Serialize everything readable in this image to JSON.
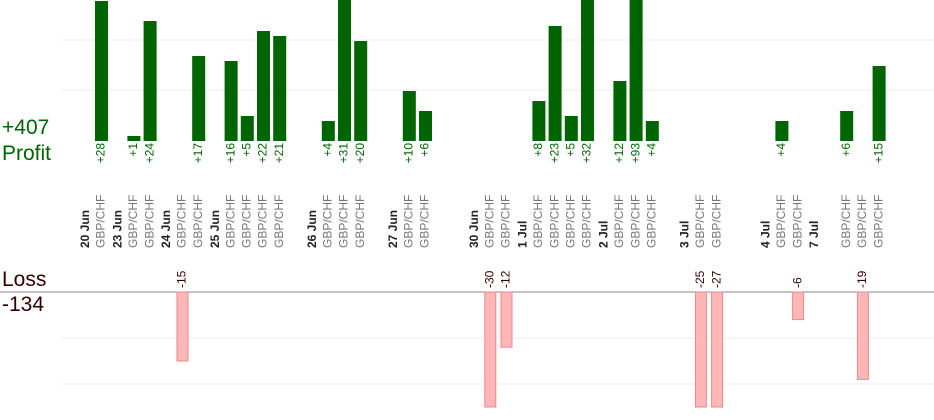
{
  "summary": {
    "profit_total": "+407",
    "profit_label": "Profit",
    "loss_label": "Loss",
    "loss_total": "-134"
  },
  "chart_data": {
    "type": "bar",
    "title": "",
    "profit_scale_max": 28,
    "loss_scale_max": 25,
    "colors": {
      "profit_bar": "#006400",
      "profit_text": "#006400",
      "loss_bar": "#ffb6b6",
      "loss_bar_border": "#e88a8a",
      "loss_text": "#330000",
      "date_text": "#222222",
      "pair_text": "#777777",
      "grid": "#eeeeee",
      "axis": "#888888"
    },
    "dates": [
      {
        "label": "20 Jun",
        "slot": 0
      },
      {
        "label": "23 Jun",
        "slot": 2
      },
      {
        "label": "24 Jun",
        "slot": 5
      },
      {
        "label": "25 Jun",
        "slot": 8
      },
      {
        "label": "26 Jun",
        "slot": 14
      },
      {
        "label": "27 Jun",
        "slot": 19
      },
      {
        "label": "30 Jun",
        "slot": 24
      },
      {
        "label": "1 Jul",
        "slot": 27
      },
      {
        "label": "2 Jul",
        "slot": 32
      },
      {
        "label": "3 Jul",
        "slot": 37
      },
      {
        "label": "4 Jul",
        "slot": 42
      },
      {
        "label": "7 Jul",
        "slot": 45
      }
    ],
    "trades": [
      {
        "pair": "GBP/CHF",
        "value": 28
      },
      {
        "pair": "GBP/CHF",
        "value": 0,
        "skip": true
      },
      {
        "pair": "GBP/CHF",
        "value": 1
      },
      {
        "pair": "GBP/CHF",
        "value": 24
      },
      {
        "pair": "GBP/CHF",
        "value": 0,
        "skip": true
      },
      {
        "pair": "GBP/CHF",
        "value": -15
      },
      {
        "pair": "GBP/CHF",
        "value": 17
      },
      {
        "pair": "GBP/CHF",
        "value": 0,
        "skip": true
      },
      {
        "pair": "GBP/CHF",
        "value": 16
      },
      {
        "pair": "GBP/CHF",
        "value": 5
      },
      {
        "pair": "GBP/CHF",
        "value": 22
      },
      {
        "pair": "GBP/CHF",
        "value": 21
      },
      {
        "pair": "GBP/CHF",
        "value": 0,
        "skip": true
      },
      {
        "pair": "GBP/CHF",
        "value": 0,
        "skip": true
      },
      {
        "pair": "GBP/CHF",
        "value": 4
      },
      {
        "pair": "GBP/CHF",
        "value": 31
      },
      {
        "pair": "GBP/CHF",
        "value": 20
      },
      {
        "pair": "GBP/CHF",
        "value": 0,
        "skip": true
      },
      {
        "pair": "GBP/CHF",
        "value": 0,
        "skip": true
      },
      {
        "pair": "GBP/CHF",
        "value": 10
      },
      {
        "pair": "GBP/CHF",
        "value": 6
      },
      {
        "pair": "GBP/CHF",
        "value": 0,
        "skip": true
      },
      {
        "pair": "GBP/CHF",
        "value": 0,
        "skip": true
      },
      {
        "pair": "GBP/CHF",
        "value": 0,
        "skip": true
      },
      {
        "pair": "GBP/CHF",
        "value": -30
      },
      {
        "pair": "GBP/CHF",
        "value": -12
      },
      {
        "pair": "GBP/CHF",
        "value": 0,
        "skip": true
      },
      {
        "pair": "GBP/CHF",
        "value": 8
      },
      {
        "pair": "GBP/CHF",
        "value": 23
      },
      {
        "pair": "GBP/CHF",
        "value": 5
      },
      {
        "pair": "GBP/CHF",
        "value": 32
      },
      {
        "pair": "GBP/CHF",
        "value": 0,
        "skip": true
      },
      {
        "pair": "GBP/CHF",
        "value": 12
      },
      {
        "pair": "GBP/CHF",
        "value": 93
      },
      {
        "pair": "GBP/CHF",
        "value": 4
      },
      {
        "pair": "GBP/CHF",
        "value": 0,
        "skip": true
      },
      {
        "pair": "GBP/CHF",
        "value": 0,
        "skip": true
      },
      {
        "pair": "GBP/CHF",
        "value": -25
      },
      {
        "pair": "GBP/CHF",
        "value": -27
      },
      {
        "pair": "GBP/CHF",
        "value": 0,
        "skip": true
      },
      {
        "pair": "GBP/CHF",
        "value": 0,
        "skip": true
      },
      {
        "pair": "GBP/CHF",
        "value": 0,
        "skip": true
      },
      {
        "pair": "GBP/CHF",
        "value": 4
      },
      {
        "pair": "GBP/CHF",
        "value": -6
      },
      {
        "pair": "GBP/CHF",
        "value": 0,
        "skip": true
      },
      {
        "pair": "GBP/CHF",
        "value": 0,
        "skip": true
      },
      {
        "pair": "GBP/CHF",
        "value": 6
      },
      {
        "pair": "GBP/CHF",
        "value": -19
      },
      {
        "pair": "GBP/CHF",
        "value": 15
      }
    ]
  }
}
